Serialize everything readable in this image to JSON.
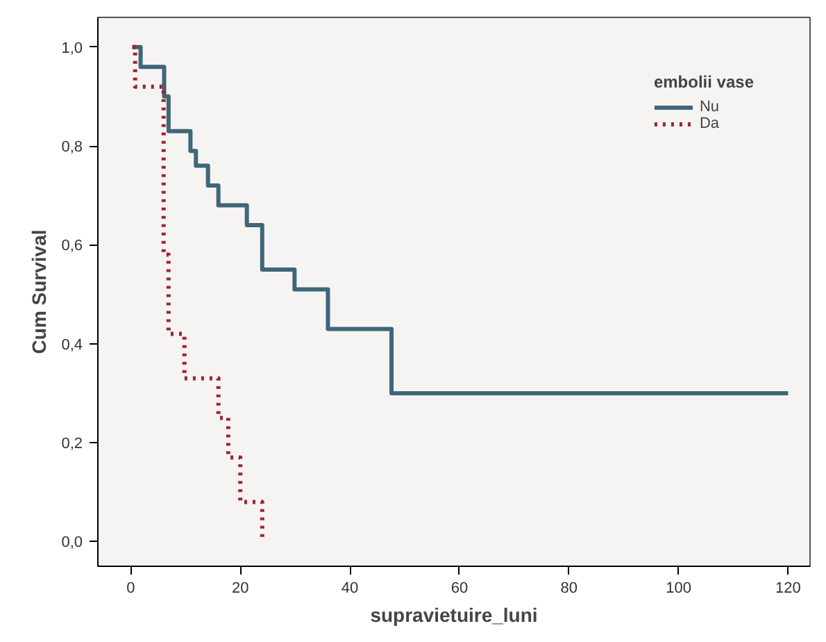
{
  "chart_data": {
    "type": "step",
    "xlabel": "supravietuire_luni",
    "ylabel": "Cum Survival",
    "legend_title": "embolii vase",
    "series": [
      {
        "name": "Nu",
        "color": "#3f6679",
        "line_style": "solid",
        "x": [
          0.3,
          1.8,
          6.1,
          6.9,
          10.9,
          11.9,
          14.1,
          16,
          21.2,
          24,
          29.9,
          36,
          47.6,
          120
        ],
        "values": [
          1.0,
          0.96,
          0.9,
          0.83,
          0.79,
          0.76,
          0.72,
          0.68,
          0.64,
          0.55,
          0.51,
          0.43,
          0.3,
          0.3
        ]
      },
      {
        "name": "Da",
        "color": "#9b2335",
        "line_style": "dotted",
        "x": [
          0.3,
          0.8,
          6,
          6.9,
          9.8,
          16,
          17.8,
          20,
          24
        ],
        "values": [
          1.0,
          0.92,
          0.58,
          0.42,
          0.33,
          0.25,
          0.17,
          0.08,
          0.0
        ]
      }
    ],
    "xlim": [
      -6,
      124
    ],
    "ylim": [
      -0.05,
      1.06
    ],
    "xticks": [
      0,
      20,
      40,
      60,
      80,
      100,
      120
    ],
    "yticks": [
      {
        "value": 0,
        "label": "0,0"
      },
      {
        "value": 0.2,
        "label": "0,2"
      },
      {
        "value": 0.4,
        "label": "0,4"
      },
      {
        "value": 0.6,
        "label": "0,6"
      },
      {
        "value": 0.8,
        "label": "0,8"
      },
      {
        "value": 1.0,
        "label": "1,0"
      }
    ],
    "grid": false,
    "legend": "top right"
  }
}
